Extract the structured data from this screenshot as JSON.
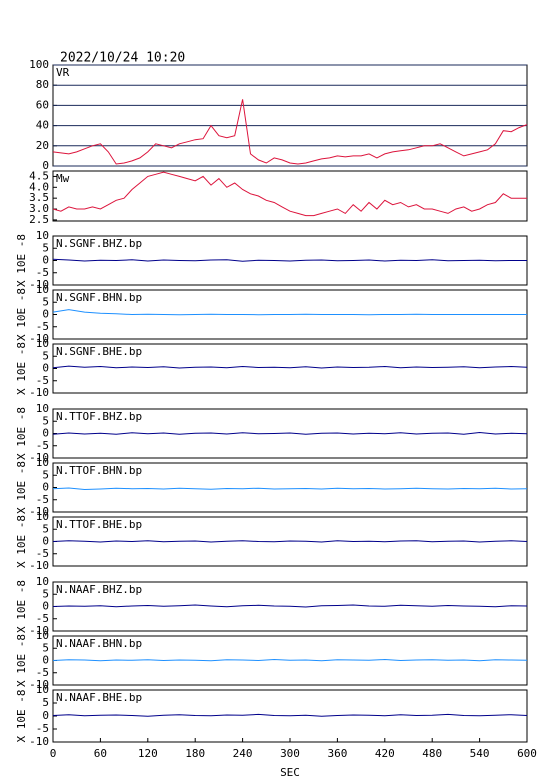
{
  "header": {
    "title": "2022/10/24 10:20"
  },
  "chart_data": [
    {
      "type": "line",
      "title": "VR",
      "color": "#dc143c",
      "grid": true,
      "grid_color": "#1a2a5a",
      "xlim": [
        0,
        600
      ],
      "ylim": [
        0,
        100
      ],
      "yticks": [
        0,
        20,
        40,
        60,
        80,
        100
      ],
      "x": [
        0,
        10,
        20,
        30,
        40,
        50,
        60,
        70,
        80,
        90,
        100,
        110,
        120,
        130,
        140,
        150,
        160,
        170,
        180,
        190,
        200,
        210,
        220,
        230,
        240,
        250,
        260,
        270,
        280,
        290,
        300,
        310,
        320,
        330,
        340,
        350,
        360,
        370,
        380,
        390,
        400,
        410,
        420,
        430,
        440,
        450,
        460,
        470,
        480,
        490,
        500,
        510,
        520,
        530,
        540,
        550,
        560,
        570,
        580,
        590,
        600
      ],
      "values": [
        14,
        13,
        12,
        14,
        17,
        20,
        22,
        14,
        2,
        3,
        5,
        8,
        14,
        22,
        20,
        18,
        22,
        24,
        26,
        27,
        40,
        30,
        28,
        30,
        66,
        12,
        6,
        3,
        8,
        6,
        3,
        2,
        3,
        5,
        7,
        8,
        10,
        9,
        10,
        10,
        12,
        8,
        12,
        14,
        15,
        16,
        18,
        20,
        20,
        22,
        18,
        14,
        10,
        12,
        14,
        16,
        22,
        35,
        34,
        38,
        41
      ]
    },
    {
      "type": "line",
      "title": "Mw",
      "color": "#dc143c",
      "grid": false,
      "xlim": [
        0,
        600
      ],
      "ylim": [
        2.45,
        4.75
      ],
      "yticks": [
        2.5,
        {
          "value": 3,
          "label": "3.0"
        },
        3.5,
        {
          "value": 4,
          "label": "4.0"
        },
        4.5
      ],
      "x": [
        0,
        10,
        20,
        30,
        40,
        50,
        60,
        70,
        80,
        90,
        100,
        110,
        120,
        130,
        140,
        150,
        160,
        170,
        180,
        190,
        200,
        210,
        220,
        230,
        240,
        250,
        260,
        270,
        280,
        290,
        300,
        310,
        320,
        330,
        340,
        350,
        360,
        370,
        380,
        390,
        400,
        410,
        420,
        430,
        440,
        450,
        460,
        470,
        480,
        490,
        500,
        510,
        520,
        530,
        540,
        550,
        560,
        570,
        580,
        590,
        600
      ],
      "values": [
        3.0,
        2.9,
        3.1,
        3.0,
        3.0,
        3.1,
        3.0,
        3.2,
        3.4,
        3.5,
        3.9,
        4.2,
        4.5,
        4.6,
        4.7,
        4.6,
        4.5,
        4.4,
        4.3,
        4.5,
        4.1,
        4.4,
        4.0,
        4.2,
        3.9,
        3.7,
        3.6,
        3.4,
        3.3,
        3.1,
        2.9,
        2.8,
        2.7,
        2.7,
        2.8,
        2.9,
        3.0,
        2.8,
        3.2,
        2.9,
        3.3,
        3.0,
        3.4,
        3.2,
        3.3,
        3.1,
        3.2,
        3.0,
        3.0,
        2.9,
        2.8,
        3.0,
        3.1,
        2.9,
        3.0,
        3.2,
        3.3,
        3.7,
        3.5,
        3.5,
        3.5
      ]
    },
    {
      "type": "line",
      "title": "N.SGNF.BHZ.bp",
      "ylabel": "X 10E -8",
      "color": "#00008b",
      "xlim": [
        0,
        600
      ],
      "ylim": [
        -10,
        10
      ],
      "yticks": [
        -10,
        -5,
        0,
        5,
        10
      ],
      "x": [
        0,
        20,
        40,
        60,
        80,
        100,
        120,
        140,
        160,
        180,
        200,
        220,
        240,
        260,
        280,
        300,
        320,
        340,
        360,
        380,
        400,
        420,
        440,
        460,
        480,
        500,
        520,
        540,
        560,
        580,
        600
      ],
      "values": [
        0.5,
        0.2,
        -0.2,
        0.1,
        0,
        0.3,
        -0.2,
        0.2,
        0,
        -0.1,
        0.2,
        0.3,
        -0.3,
        0.1,
        0,
        -0.2,
        0.1,
        0.2,
        -0.1,
        0,
        0.2,
        -0.2,
        0.1,
        0,
        0.3,
        -0.1,
        0,
        0.1,
        -0.1,
        0,
        0
      ]
    },
    {
      "type": "line",
      "title": "N.SGNF.BHN.bp",
      "ylabel": "X 10E -8",
      "color": "#1e90ff",
      "xlim": [
        0,
        600
      ],
      "ylim": [
        -10,
        10
      ],
      "yticks": [
        -10,
        -5,
        0,
        5,
        10
      ],
      "x": [
        0,
        20,
        40,
        60,
        80,
        100,
        120,
        140,
        160,
        180,
        200,
        220,
        240,
        260,
        280,
        300,
        320,
        340,
        360,
        380,
        400,
        420,
        440,
        460,
        480,
        500,
        520,
        540,
        560,
        580,
        600
      ],
      "values": [
        1,
        2,
        1,
        0.5,
        0.3,
        0,
        0.1,
        0,
        -0.1,
        0,
        0.1,
        0,
        0,
        -0.1,
        0,
        0,
        0.1,
        0,
        0,
        0,
        -0.1,
        0,
        0,
        0.1,
        0,
        0,
        0,
        0,
        0,
        0,
        0
      ]
    },
    {
      "type": "line",
      "title": "N.SGNF.BHE.bp",
      "ylabel": "X 10E -8",
      "color": "#00008b",
      "xlim": [
        0,
        600
      ],
      "ylim": [
        -10,
        10
      ],
      "yticks": [
        -10,
        -5,
        0,
        5,
        10
      ],
      "x": [
        0,
        20,
        40,
        60,
        80,
        100,
        120,
        140,
        160,
        180,
        200,
        220,
        240,
        260,
        280,
        300,
        320,
        340,
        360,
        380,
        400,
        420,
        440,
        460,
        480,
        500,
        520,
        540,
        560,
        580,
        600
      ],
      "values": [
        0.3,
        1,
        0.5,
        0.8,
        0.3,
        0.6,
        0.4,
        0.7,
        0.2,
        0.5,
        0.6,
        0.3,
        0.8,
        0.4,
        0.5,
        0.3,
        0.7,
        0.2,
        0.6,
        0.4,
        0.5,
        0.8,
        0.3,
        0.6,
        0.4,
        0.5,
        0.7,
        0.3,
        0.6,
        0.8,
        0.5
      ]
    },
    {
      "type": "line",
      "title": "N.TTOF.BHZ.bp",
      "ylabel": "X 10E -8",
      "color": "#00008b",
      "xlim": [
        0,
        600
      ],
      "ylim": [
        -10,
        10
      ],
      "yticks": [
        -10,
        -5,
        0,
        5,
        10
      ],
      "x": [
        0,
        20,
        40,
        60,
        80,
        100,
        120,
        140,
        160,
        180,
        200,
        220,
        240,
        260,
        280,
        300,
        320,
        340,
        360,
        380,
        400,
        420,
        440,
        460,
        480,
        500,
        520,
        540,
        560,
        580,
        600
      ],
      "values": [
        -0.3,
        0.2,
        -0.2,
        0.1,
        -0.3,
        0.3,
        -0.1,
        0.2,
        -0.3,
        0.1,
        0.2,
        -0.2,
        0.3,
        -0.1,
        0,
        0.2,
        -0.3,
        0.1,
        0.2,
        -0.2,
        0.1,
        -0.1,
        0.3,
        -0.2,
        0.1,
        0.2,
        -0.3,
        0.4,
        -0.2,
        0.1,
        -0.1
      ]
    },
    {
      "type": "line",
      "title": "N.TTOF.BHN.bp",
      "ylabel": "X 10E -8",
      "color": "#1e90ff",
      "xlim": [
        0,
        600
      ],
      "ylim": [
        -10,
        10
      ],
      "yticks": [
        -10,
        -5,
        0,
        5,
        10
      ],
      "x": [
        0,
        20,
        40,
        60,
        80,
        100,
        120,
        140,
        160,
        180,
        200,
        220,
        240,
        260,
        280,
        300,
        320,
        340,
        360,
        380,
        400,
        420,
        440,
        460,
        480,
        500,
        520,
        540,
        560,
        580,
        600
      ],
      "values": [
        -0.5,
        -0.2,
        -0.8,
        -0.6,
        -0.3,
        -0.5,
        -0.4,
        -0.6,
        -0.3,
        -0.5,
        -0.7,
        -0.4,
        -0.5,
        -0.3,
        -0.6,
        -0.5,
        -0.4,
        -0.6,
        -0.3,
        -0.5,
        -0.4,
        -0.6,
        -0.5,
        -0.3,
        -0.5,
        -0.6,
        -0.4,
        -0.5,
        -0.3,
        -0.6,
        -0.5
      ]
    },
    {
      "type": "line",
      "title": "N.TTOF.BHE.bp",
      "ylabel": "X 10E -8",
      "color": "#00008b",
      "xlim": [
        0,
        600
      ],
      "ylim": [
        -10,
        10
      ],
      "yticks": [
        -10,
        -5,
        0,
        5,
        10
      ],
      "x": [
        0,
        20,
        40,
        60,
        80,
        100,
        120,
        140,
        160,
        180,
        200,
        220,
        240,
        260,
        280,
        300,
        320,
        340,
        360,
        380,
        400,
        420,
        440,
        460,
        480,
        500,
        520,
        540,
        560,
        580,
        600
      ],
      "values": [
        0,
        0.3,
        0.1,
        -0.2,
        0.2,
        0,
        0.3,
        -0.1,
        0.1,
        0.2,
        -0.2,
        0.1,
        0.3,
        0,
        -0.1,
        0.2,
        0.1,
        -0.2,
        0.3,
        0,
        0.1,
        -0.1,
        0.2,
        0.3,
        -0.1,
        0.1,
        0.2,
        -0.2,
        0.1,
        0.3,
        0
      ]
    },
    {
      "type": "line",
      "title": "N.NAAF.BHZ.bp",
      "ylabel": "X 10E -8",
      "color": "#00008b",
      "xlim": [
        0,
        600
      ],
      "ylim": [
        -10,
        10
      ],
      "yticks": [
        -10,
        -5,
        0,
        5,
        10
      ],
      "x": [
        0,
        20,
        40,
        60,
        80,
        100,
        120,
        140,
        160,
        180,
        200,
        220,
        240,
        260,
        280,
        300,
        320,
        340,
        360,
        380,
        400,
        420,
        440,
        460,
        480,
        500,
        520,
        540,
        560,
        580,
        600
      ],
      "values": [
        0,
        0.2,
        0.1,
        0.3,
        -0.1,
        0.2,
        0.4,
        0.1,
        0.3,
        0.6,
        0.2,
        -0.1,
        0.3,
        0.5,
        0.2,
        0.1,
        -0.2,
        0.3,
        0.4,
        0.6,
        0.2,
        0.1,
        0.5,
        0.3,
        0.1,
        0.4,
        0.2,
        0.1,
        -0.1,
        0.3,
        0.2
      ]
    },
    {
      "type": "line",
      "title": "N.NAAF.BHN.bp",
      "ylabel": "X 10E -8",
      "color": "#1e90ff",
      "xlim": [
        0,
        600
      ],
      "ylim": [
        -10,
        10
      ],
      "yticks": [
        -10,
        -5,
        0,
        5,
        10
      ],
      "x": [
        0,
        20,
        40,
        60,
        80,
        100,
        120,
        140,
        160,
        180,
        200,
        220,
        240,
        260,
        280,
        300,
        320,
        340,
        360,
        380,
        400,
        420,
        440,
        460,
        480,
        500,
        520,
        540,
        560,
        580,
        600
      ],
      "values": [
        0,
        0.3,
        0.2,
        -0.1,
        0.2,
        0.1,
        0.3,
        0,
        0.2,
        0.1,
        -0.1,
        0.3,
        0.2,
        0,
        0.4,
        0.1,
        0.2,
        -0.1,
        0.3,
        0.2,
        0.1,
        0.4,
        0,
        0.2,
        0.3,
        0.1,
        0.2,
        -0.1,
        0.3,
        0.2,
        0.1
      ]
    },
    {
      "type": "line",
      "title": "N.NAAF.BHE.bp",
      "ylabel": "X 10E -8",
      "color": "#00008b",
      "xlim": [
        0,
        600
      ],
      "ylim": [
        -10,
        10
      ],
      "yticks": [
        -10,
        -5,
        0,
        5,
        10
      ],
      "x": [
        0,
        20,
        40,
        60,
        80,
        100,
        120,
        140,
        160,
        180,
        200,
        220,
        240,
        260,
        280,
        300,
        320,
        340,
        360,
        380,
        400,
        420,
        440,
        460,
        480,
        500,
        520,
        540,
        560,
        580,
        600
      ],
      "values": [
        0.2,
        0.5,
        0.1,
        0.3,
        0.4,
        0.2,
        -0.1,
        0.3,
        0.5,
        0.2,
        0.1,
        0.4,
        0.3,
        0.6,
        0.2,
        0.1,
        0.3,
        -0.1,
        0.2,
        0.4,
        0.3,
        0.1,
        0.5,
        0.2,
        0.3,
        0.6,
        0.2,
        0.1,
        0.3,
        0.5,
        0.2
      ],
      "xticks": [
        0,
        60,
        120,
        180,
        240,
        300,
        360,
        420,
        480,
        540,
        600
      ],
      "xlabel": "SEC"
    }
  ]
}
